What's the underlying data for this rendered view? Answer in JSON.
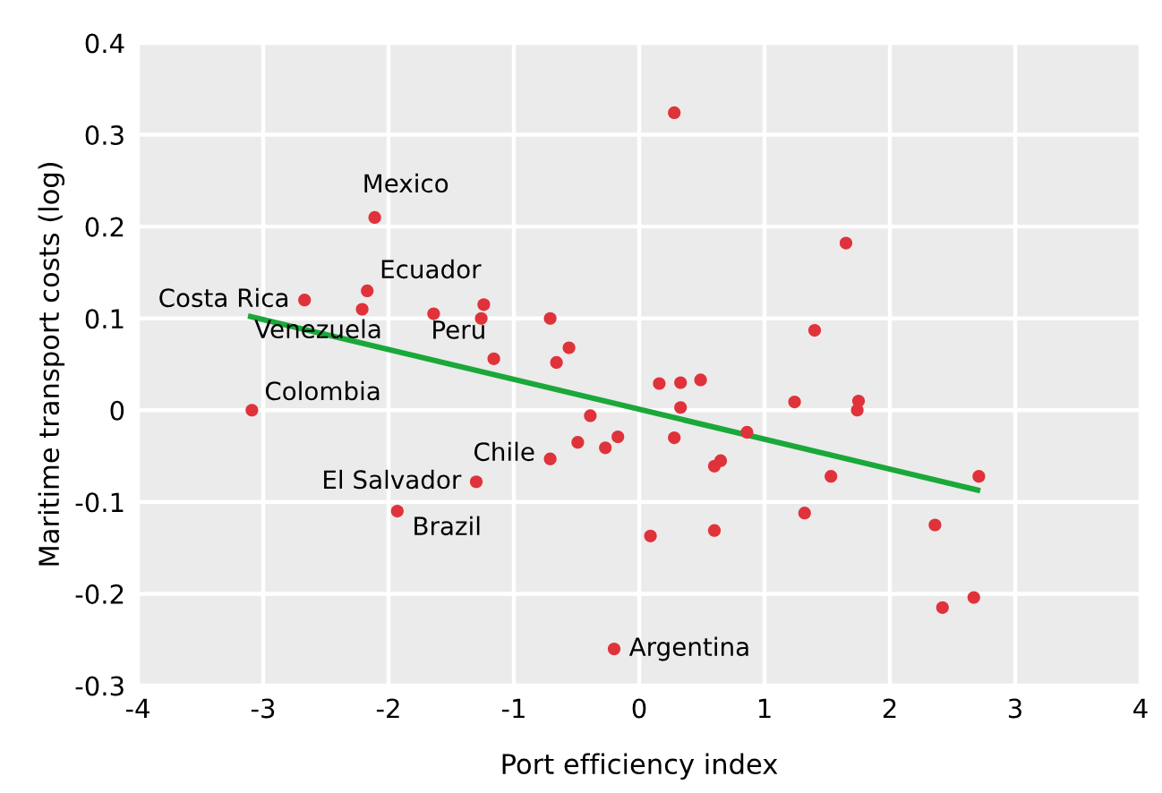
{
  "chart_data": {
    "type": "scatter",
    "xlabel": "Port efficiency index",
    "ylabel": "Maritime transport costs (log)",
    "xlim": [
      -4,
      4
    ],
    "ylim": [
      -0.3,
      0.4
    ],
    "xticks": [
      -4,
      -3,
      -2,
      -1,
      0,
      1,
      2,
      3,
      4
    ],
    "yticks": [
      -0.3,
      -0.2,
      -0.1,
      0,
      0.1,
      0.2,
      0.3,
      0.4
    ],
    "grid": true,
    "marker": "circle",
    "series": [
      {
        "color": "#e0323a",
        "x": [
          -2.11,
          -2.67,
          -2.17,
          -2.21,
          -1.64,
          -1.24,
          -1.26,
          -1.16,
          -0.71,
          -0.56,
          -0.66,
          -3.09,
          -0.39,
          -0.49,
          -0.27,
          -0.17,
          -0.71,
          -1.3,
          -1.93,
          -0.2,
          0.28,
          1.65,
          1.4,
          0.16,
          0.33,
          0.49,
          0.33,
          1.24,
          1.75,
          1.74,
          0.86,
          0.28,
          0.6,
          0.65,
          1.53,
          2.71,
          1.32,
          0.09,
          0.6,
          2.36,
          2.67,
          2.42
        ],
        "values": [
          0.21,
          0.12,
          0.13,
          0.11,
          0.105,
          0.115,
          0.1,
          0.056,
          0.1,
          0.068,
          0.052,
          0.0,
          -0.006,
          -0.035,
          -0.041,
          -0.029,
          -0.053,
          -0.078,
          -0.11,
          -0.26,
          0.324,
          0.182,
          0.087,
          0.029,
          0.03,
          0.033,
          0.003,
          0.009,
          0.01,
          0.0,
          -0.024,
          -0.03,
          -0.061,
          -0.055,
          -0.072,
          -0.072,
          -0.112,
          -0.137,
          -0.131,
          -0.125,
          -0.204,
          -0.215
        ]
      },
      {
        "type": "line",
        "color": "#1aa83a",
        "x": [
          -3.1,
          2.7
        ],
        "values": [
          0.102,
          -0.087
        ],
        "marker": "none"
      }
    ],
    "annotations": [
      {
        "text": "Mexico",
        "x": -2.11,
        "y": 0.21
      },
      {
        "text": "Costa Rica",
        "x": -2.67,
        "y": 0.12
      },
      {
        "text": "Ecuador",
        "x": -2.17,
        "y": 0.13
      },
      {
        "text": "Venezuela",
        "x": -2.21,
        "y": 0.11
      },
      {
        "text": "Peru",
        "x": -1.16,
        "y": 0.056
      },
      {
        "text": "Colombia",
        "x": -3.09,
        "y": 0.0
      },
      {
        "text": "Chile",
        "x": -0.71,
        "y": -0.053
      },
      {
        "text": "El Salvador",
        "x": -1.3,
        "y": -0.078
      },
      {
        "text": "Brazil",
        "x": -1.93,
        "y": -0.11
      },
      {
        "text": "Argentina",
        "x": -0.2,
        "y": -0.26
      }
    ]
  }
}
